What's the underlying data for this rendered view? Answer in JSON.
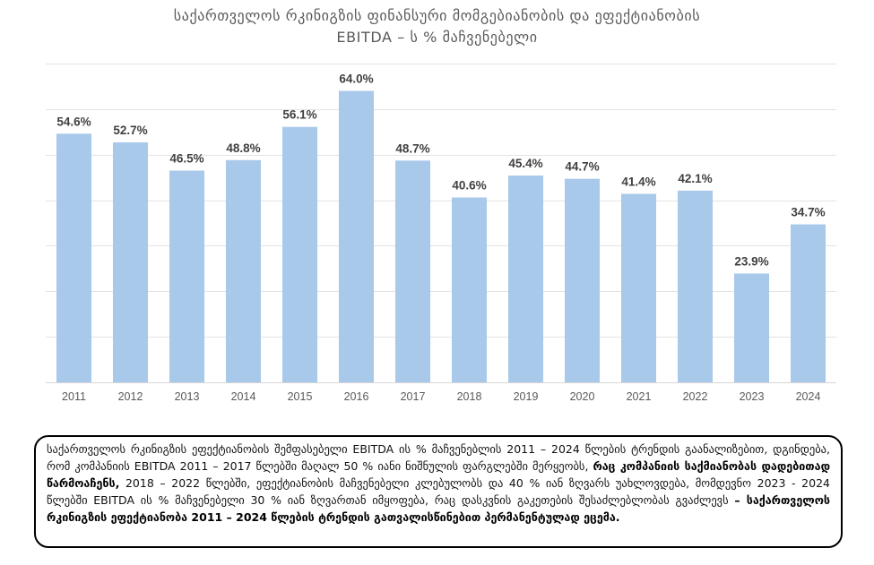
{
  "chart_data": {
    "type": "bar",
    "title_lines": [
      "საქართველოს რკინიგზის ფინანსური მომგებიანობის და ეფექტიანობის",
      "EBITDA – ს % მაჩვენებელი"
    ],
    "categories": [
      "2011",
      "2012",
      "2013",
      "2014",
      "2015",
      "2016",
      "2017",
      "2018",
      "2019",
      "2020",
      "2021",
      "2022",
      "2023",
      "2024"
    ],
    "values": [
      54.6,
      52.7,
      46.5,
      48.8,
      56.1,
      64.0,
      48.7,
      40.6,
      45.4,
      44.7,
      41.4,
      42.1,
      23.9,
      34.7
    ],
    "data_labels": [
      "54.6%",
      "52.7%",
      "46.5%",
      "48.8%",
      "56.1%",
      "64.0%",
      "48.7%",
      "40.6%",
      "45.4%",
      "44.7%",
      "41.4%",
      "42.1%",
      "23.9%",
      "34.7%"
    ],
    "xlabel": "",
    "ylabel": "",
    "ylim": [
      0,
      70
    ],
    "y_grid_step": 10,
    "y_tick_labels_shown": false,
    "grid": true,
    "legend": "none"
  },
  "colors": {
    "bar": "#A9C9EB",
    "grid": "#E3E3E3",
    "axis": "#D6D6D6",
    "title": "#595959",
    "box_border": "#000000"
  },
  "summary": {
    "text_1": "საქართველოს რკინიგზის ეფექტიანობის შემფასებელი EBITDA ის % მაჩვენებლის 2011 – 2024 წლების ტრენდის გაანალიზებით, დგინდება, რომ კომპანიის EBITDA 2011 – 2017 წლებში მაღალ 50 % იანი ნიშნულის ფარგლებში მერყეობს, ",
    "emphasis_1": "რაც კომპანიის საქმიანობას დადებითად წარმოაჩენს,",
    "text_2": " 2018 – 2022 წლებში, ეფექტიანობის მაჩვენებელი კლებულობს და 40 % იან ზღვარს უახლოვდება, მომდევნო 2023 - 2024 წლებში EBITDA ის % მაჩვენებელი 30 % იან ზღვართან იმყოფება, რაც დასკვნის გაკეთების შესაძლებლობას გვაძლევს ",
    "emphasis_2": "– საქართველოს რკინიგზის ეფექტიანობა 2011 – 2024 წლების ტრენდის გათვალისწინებით პერმანენტულად ეცემა."
  }
}
